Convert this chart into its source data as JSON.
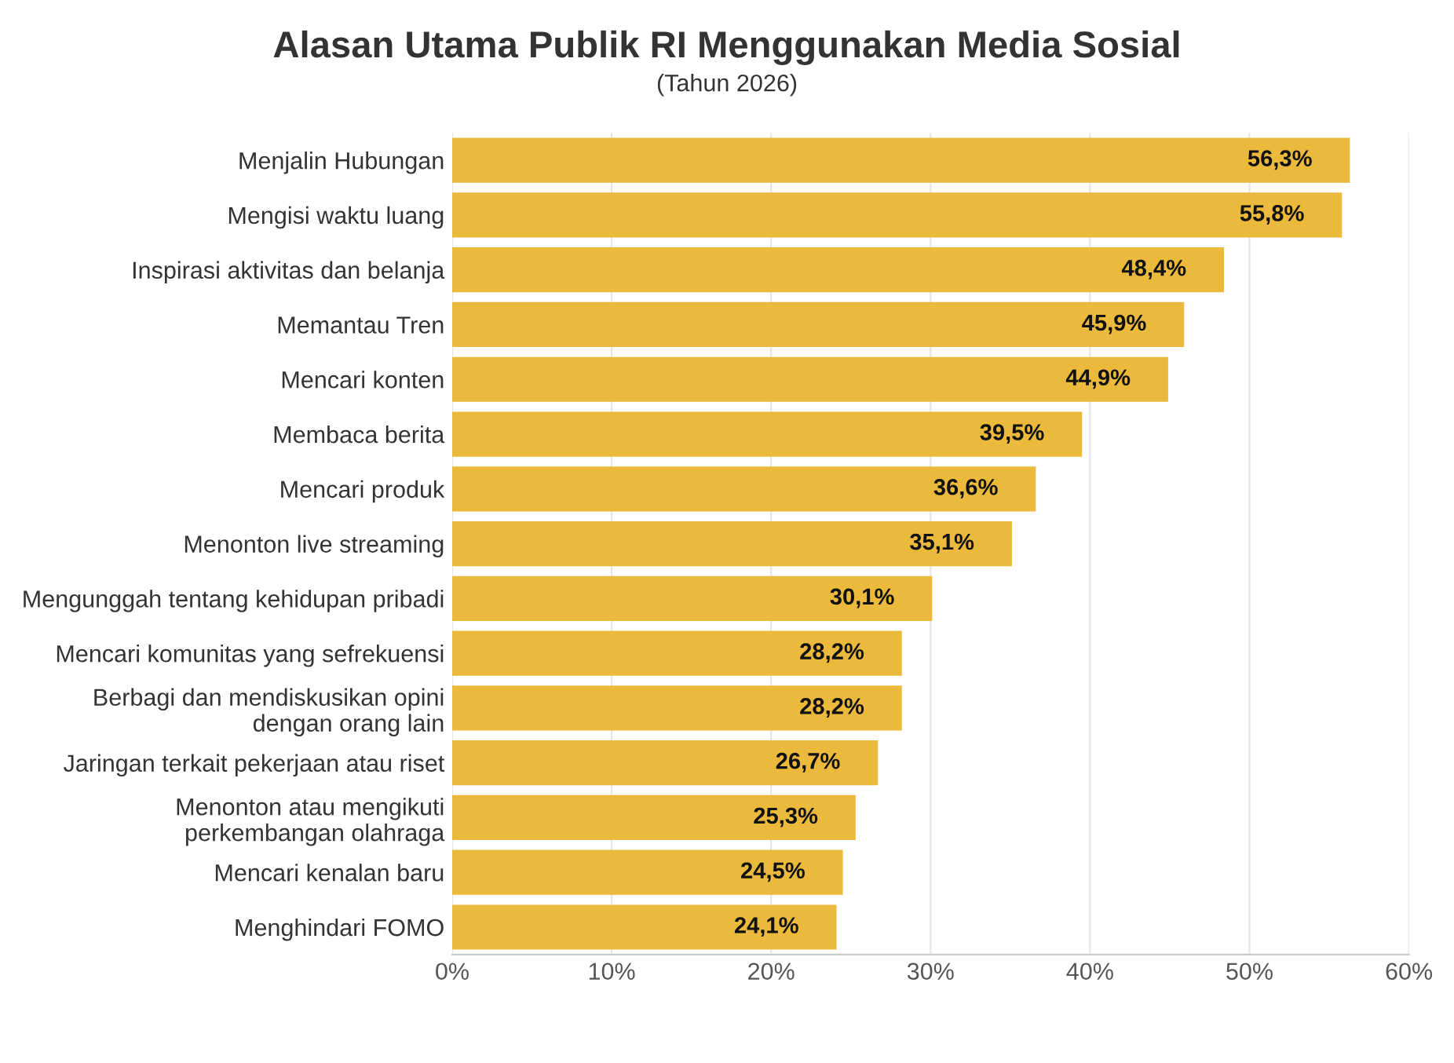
{
  "chart_data": {
    "type": "bar",
    "orientation": "horizontal",
    "title": "Alasan Utama Publik RI Menggunakan Media Sosial",
    "subtitle": "(Tahun 2026)",
    "categories": [
      "Menjalin Hubungan",
      "Mengisi waktu luang",
      "Inspirasi aktivitas dan belanja",
      "Memantau Tren",
      "Mencari konten",
      "Membaca berita",
      "Mencari produk",
      "Menonton live streaming",
      "Mengunggah tentang kehidupan pribadi",
      "Mencari komunitas yang sefrekuensi",
      "Berbagi dan mendiskusikan opini\ndengan orang lain",
      "Jaringan terkait pekerjaan atau riset",
      "Menonton atau mengikuti\nperkembangan olahraga",
      "Mencari kenalan baru",
      "Menghindari FOMO"
    ],
    "values": [
      56.3,
      55.8,
      48.4,
      45.9,
      44.9,
      39.5,
      36.6,
      35.1,
      30.1,
      28.2,
      28.2,
      26.7,
      25.3,
      24.5,
      24.1
    ],
    "value_labels": [
      "56,3%",
      "55,8%",
      "48,4%",
      "45,9%",
      "44,9%",
      "39,5%",
      "36,6%",
      "35,1%",
      "30,1%",
      "28,2%",
      "28,2%",
      "26,7%",
      "25,3%",
      "24,5%",
      "24,1%"
    ],
    "color": "#ebb93b",
    "xlim": [
      0,
      60
    ],
    "xticks": [
      {
        "value": 0,
        "label": "0%"
      },
      {
        "value": 10,
        "label": "10%"
      },
      {
        "value": 20,
        "label": "20%"
      },
      {
        "value": 30,
        "label": "30%"
      },
      {
        "value": 40,
        "label": "40%"
      },
      {
        "value": 50,
        "label": "50%"
      },
      {
        "value": 60,
        "label": "60%"
      }
    ],
    "grid": "x",
    "legend": false
  }
}
